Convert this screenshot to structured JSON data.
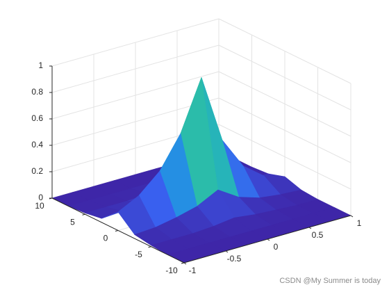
{
  "chart_data": {
    "type": "surface",
    "x": [
      -1,
      -0.75,
      -0.5,
      -0.25,
      0,
      0.25,
      0.5,
      0.75,
      1
    ],
    "y": [
      -10,
      -7.5,
      -5,
      -2.5,
      0,
      2.5,
      5,
      7.5,
      10
    ],
    "z": [
      [
        0,
        0,
        0,
        0,
        0,
        0,
        0,
        0,
        0
      ],
      [
        0,
        0,
        0,
        0,
        0,
        0,
        0,
        0,
        0
      ],
      [
        0.01,
        0.01,
        0.01,
        0.02,
        0.04,
        0.02,
        0.01,
        0,
        0
      ],
      [
        0.03,
        0.04,
        0.07,
        0.11,
        0.19,
        0.09,
        0.04,
        0.02,
        0.01
      ],
      [
        0.14,
        0.22,
        0.36,
        0.6,
        0.98,
        0.46,
        0.22,
        0.1,
        0.05
      ],
      [
        0.03,
        0.04,
        0.07,
        0.11,
        0.19,
        0.09,
        0.04,
        0.02,
        0.01
      ],
      [
        0.01,
        0.01,
        0.01,
        0.02,
        0.04,
        0.02,
        0.01,
        0,
        0
      ],
      [
        0,
        0,
        0,
        0,
        0,
        0,
        0,
        0,
        0
      ],
      [
        0,
        0,
        0,
        0,
        0,
        0,
        0,
        0,
        0
      ]
    ],
    "xlim": [
      -1,
      1
    ],
    "xticks": [
      -1,
      -0.5,
      0,
      0.5,
      1
    ],
    "ylim": [
      -10,
      10
    ],
    "yticks": [
      -10,
      -5,
      0,
      5,
      10
    ],
    "zlim": [
      0,
      1
    ],
    "zticks": [
      0,
      0.2,
      0.4,
      0.6,
      0.8,
      1
    ],
    "grid": true,
    "colormap": [
      "#3e26a8",
      "#3a5ef0",
      "#1ca3de",
      "#2ec19f",
      "#a8c33a",
      "#f3c03a",
      "#f9fb15"
    ],
    "watermark": "CSDN @My Summer is today"
  }
}
